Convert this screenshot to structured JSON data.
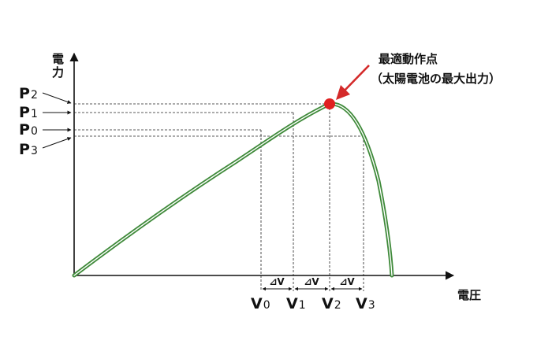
{
  "axes": {
    "y_label": "電力",
    "x_label": "電圧"
  },
  "power_labels": [
    {
      "main": "P",
      "sub": "2"
    },
    {
      "main": "P",
      "sub": "1"
    },
    {
      "main": "P",
      "sub": "0"
    },
    {
      "main": "P",
      "sub": "3"
    }
  ],
  "voltage_labels": [
    {
      "main": "V",
      "sub": "0"
    },
    {
      "main": "V",
      "sub": "1"
    },
    {
      "main": "V",
      "sub": "2"
    },
    {
      "main": "V",
      "sub": "3"
    }
  ],
  "delta": "⊿V",
  "annotation": {
    "line1": "最適動作点",
    "line2": "（太陽電池の最大出力）"
  },
  "colors": {
    "curve": "#3f8a3a",
    "mpp": "#e02020",
    "arrow": "#d42a2a",
    "axis": "#111111"
  }
}
